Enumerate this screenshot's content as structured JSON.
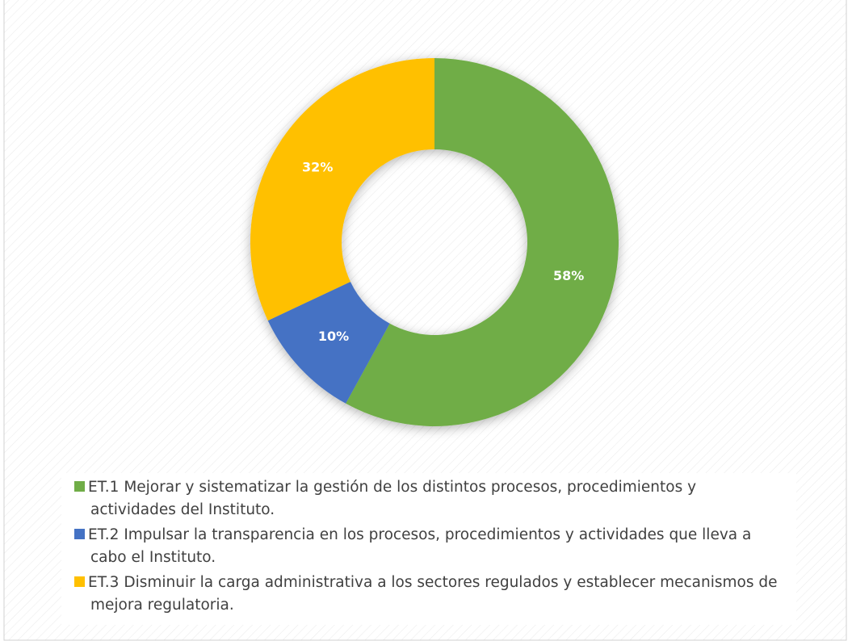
{
  "chart_data": {
    "type": "donut",
    "categories": [
      "ET.1 Mejorar y sistematizar la gestión de los distintos procesos, procedimientos y actividades del Instituto.",
      "ET.2 Impulsar la transparencia en los procesos, procedimientos y actividades que lleva a cabo el Instituto.",
      "ET.3 Disminuir la carga administrativa a los sectores regulados y establecer mecanismos de mejora regulatoria."
    ],
    "values": [
      58,
      10,
      32
    ],
    "value_labels": [
      "58%",
      "10%",
      "32%"
    ],
    "colors": [
      "#70ad47",
      "#4472c4",
      "#ffc000"
    ]
  }
}
